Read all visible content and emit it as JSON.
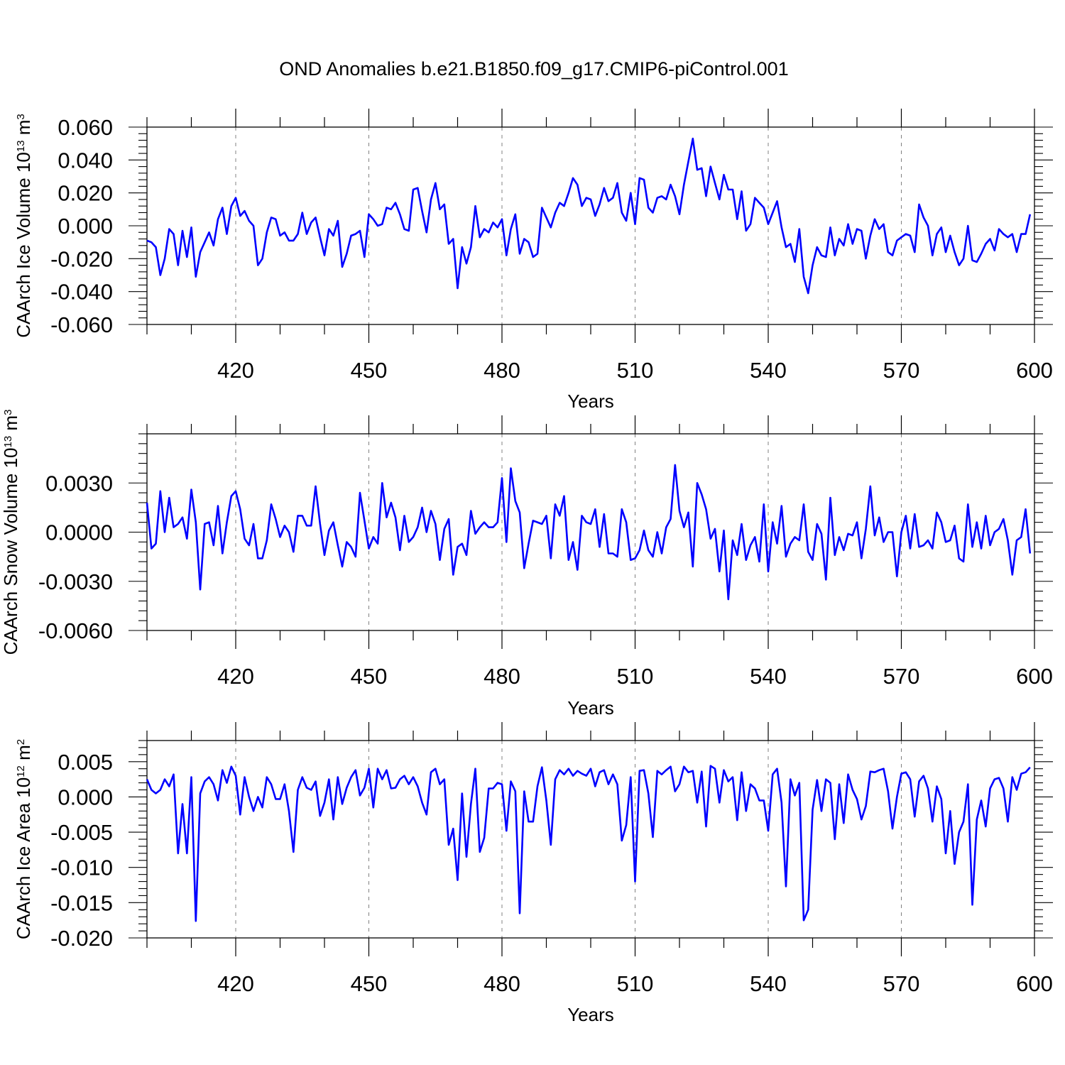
{
  "title": "OND Anomalies b.e21.B1850.f09_g17.CMIP6-piControl.001",
  "colors": {
    "series": "#0000ff",
    "axis": "#000000",
    "grid": "#808080"
  },
  "chart_data": [
    {
      "type": "line",
      "title": "OND Anomalies b.e21.B1850.f09_g17.CMIP6-piControl.001",
      "xlabel": "Years",
      "ylabel": {
        "text": "CAArch Ice Volume 10",
        "exp": "13",
        "unit": " m",
        "unit_exp": "3"
      },
      "xlim": [
        400,
        600
      ],
      "ylim": [
        -0.06,
        0.06
      ],
      "xticks": [
        420,
        450,
        480,
        510,
        540,
        570,
        600
      ],
      "xtick_labels": [
        "420",
        "450",
        "480",
        "510",
        "540",
        "570",
        "600"
      ],
      "yticks": [
        -0.06,
        -0.04,
        -0.02,
        0.0,
        0.02,
        0.04,
        0.06
      ],
      "ytick_labels": [
        "-0.060",
        "-0.040",
        "-0.020",
        "0.000",
        "0.020",
        "0.040",
        "0.060"
      ],
      "grid": "vertical-dashed",
      "x_start": 400,
      "values": [
        -0.009,
        -0.01,
        -0.013,
        -0.03,
        -0.02,
        -0.002,
        -0.005,
        -0.024,
        -0.003,
        -0.019,
        -0.001,
        -0.031,
        -0.016,
        -0.01,
        -0.004,
        -0.012,
        0.004,
        0.011,
        -0.005,
        0.012,
        0.017,
        0.006,
        0.009,
        0.003,
        0.0,
        -0.024,
        -0.02,
        -0.004,
        0.005,
        0.004,
        -0.006,
        -0.004,
        -0.009,
        -0.009,
        -0.005,
        0.008,
        -0.005,
        0.002,
        0.005,
        -0.007,
        -0.018,
        -0.002,
        -0.006,
        0.003,
        -0.025,
        -0.017,
        -0.006,
        -0.005,
        -0.003,
        -0.019,
        0.007,
        0.004,
        0.0,
        0.001,
        0.011,
        0.01,
        0.014,
        0.007,
        -0.002,
        -0.003,
        0.022,
        0.023,
        0.009,
        -0.004,
        0.016,
        0.026,
        0.01,
        0.013,
        -0.011,
        -0.008,
        -0.038,
        -0.013,
        -0.023,
        -0.013,
        0.012,
        -0.007,
        -0.002,
        -0.004,
        0.002,
        -0.001,
        0.004,
        -0.018,
        -0.002,
        0.007,
        -0.017,
        -0.008,
        -0.01,
        -0.019,
        -0.017,
        0.011,
        0.005,
        -0.001,
        0.008,
        0.014,
        0.012,
        0.02,
        0.029,
        0.025,
        0.012,
        0.017,
        0.016,
        0.006,
        0.013,
        0.023,
        0.015,
        0.017,
        0.026,
        0.008,
        0.003,
        0.02,
        0.001,
        0.029,
        0.028,
        0.011,
        0.008,
        0.017,
        0.018,
        0.016,
        0.025,
        0.018,
        0.007,
        0.025,
        0.039,
        0.053,
        0.034,
        0.035,
        0.018,
        0.036,
        0.026,
        0.016,
        0.031,
        0.022,
        0.022,
        0.004,
        0.021,
        -0.003,
        0.001,
        0.017,
        0.014,
        0.011,
        0.001,
        0.008,
        0.015,
        -0.001,
        -0.013,
        -0.011,
        -0.022,
        -0.002,
        -0.031,
        -0.041,
        -0.024,
        -0.013,
        -0.018,
        -0.019,
        -0.001,
        -0.018,
        -0.008,
        -0.012,
        0.001,
        -0.011,
        -0.002,
        -0.003,
        -0.02,
        -0.006,
        0.004,
        -0.002,
        0.001,
        -0.016,
        -0.018,
        -0.009,
        -0.007,
        -0.005,
        -0.006,
        -0.016,
        0.013,
        0.005,
        0.0,
        -0.018,
        -0.005,
        -0.001,
        -0.016,
        -0.006,
        -0.016,
        -0.024,
        -0.02,
        0.0,
        -0.021,
        -0.022,
        -0.017,
        -0.011,
        -0.008,
        -0.015,
        -0.002,
        -0.005,
        -0.007,
        -0.005,
        -0.016,
        -0.005,
        -0.005,
        0.007
      ]
    },
    {
      "type": "line",
      "xlabel": "Years",
      "ylabel": {
        "text": "CAArch Snow Volume 10",
        "exp": "13",
        "unit": " m",
        "unit_exp": "3"
      },
      "xlim": [
        400,
        600
      ],
      "ylim": [
        -0.006,
        0.006
      ],
      "xticks": [
        420,
        450,
        480,
        510,
        540,
        570,
        600
      ],
      "xtick_labels": [
        "420",
        "450",
        "480",
        "510",
        "540",
        "570",
        "600"
      ],
      "yticks": [
        -0.006,
        -0.003,
        0.0,
        0.003
      ],
      "ytick_labels": [
        "-0.0060",
        "-0.0030",
        "0.0000",
        "0.0030"
      ],
      "grid": "vertical-dashed",
      "x_start": 400,
      "values": [
        0.0018,
        -0.001,
        -0.0007,
        0.0025,
        0.0,
        0.0021,
        0.0003,
        0.0005,
        0.0009,
        -0.0004,
        0.0026,
        0.0006,
        -0.0035,
        0.0005,
        0.0006,
        -0.0008,
        0.0016,
        -0.0013,
        0.0006,
        0.0022,
        0.0025,
        0.0014,
        -0.0004,
        -0.0008,
        0.0005,
        -0.0016,
        -0.0016,
        -0.0005,
        0.0017,
        0.0008,
        -0.0003,
        0.0004,
        0.0,
        -0.0012,
        0.001,
        0.001,
        0.0004,
        0.0004,
        0.0028,
        0.0005,
        -0.0014,
        0.0001,
        0.0006,
        -0.0008,
        -0.0021,
        -0.0006,
        -0.0009,
        -0.0015,
        0.0024,
        0.0007,
        -0.001,
        -0.0003,
        -0.0007,
        0.003,
        0.0009,
        0.0018,
        0.0009,
        -0.0011,
        0.001,
        -0.0006,
        -0.0003,
        0.0003,
        0.0015,
        0.0,
        0.0013,
        0.0005,
        -0.0017,
        0.0002,
        0.0008,
        -0.0026,
        -0.0009,
        -0.0007,
        -0.0014,
        0.0013,
        -0.0001,
        0.0003,
        0.0006,
        0.0003,
        0.0003,
        0.0006,
        0.0033,
        -0.0006,
        0.0039,
        0.0019,
        0.0012,
        -0.0022,
        -0.0007,
        0.0007,
        0.0006,
        0.0005,
        0.001,
        -0.0016,
        0.0017,
        0.001,
        0.0022,
        -0.0017,
        -0.0006,
        -0.0023,
        0.001,
        0.0006,
        0.0005,
        0.0014,
        -0.0009,
        0.0011,
        -0.0013,
        -0.0013,
        -0.0015,
        0.0014,
        0.0006,
        -0.0017,
        -0.0016,
        -0.0011,
        0.0001,
        -0.0011,
        -0.0015,
        0.0,
        -0.0013,
        0.0003,
        0.0008,
        0.0041,
        0.0013,
        0.0003,
        0.0012,
        -0.0021,
        0.003,
        0.0023,
        0.0014,
        -0.0004,
        0.0002,
        -0.0024,
        0.0001,
        -0.0041,
        -0.0005,
        -0.0014,
        0.0005,
        -0.0017,
        -0.0008,
        -0.0003,
        -0.0018,
        0.0017,
        -0.0024,
        0.0006,
        -0.0007,
        0.0016,
        -0.0015,
        -0.0007,
        -0.0003,
        -0.0005,
        0.0017,
        -0.0012,
        -0.0017,
        0.0005,
        -0.0001,
        -0.0029,
        0.0021,
        -0.0014,
        -0.0003,
        -0.0011,
        -0.0001,
        -0.0002,
        0.0006,
        -0.0016,
        0.0002,
        0.0028,
        -0.0002,
        0.0009,
        -0.0006,
        0.0,
        0.0,
        -0.0027,
        0.0,
        0.001,
        -0.001,
        0.0011,
        -0.0009,
        -0.0008,
        -0.0005,
        -0.001,
        0.0012,
        0.0006,
        -0.0006,
        -0.0005,
        0.0004,
        -0.0016,
        -0.0018,
        0.0017,
        -0.0009,
        0.0006,
        -0.001,
        0.001,
        -0.0008,
        0.0,
        0.0002,
        0.0008,
        -0.0005,
        -0.0026,
        -0.0005,
        -0.0003,
        0.0014,
        -0.0013
      ]
    },
    {
      "type": "line",
      "xlabel": "Years",
      "ylabel": {
        "text": "CAArch Ice Area 10",
        "exp": "12",
        "unit": " m",
        "unit_exp": "2"
      },
      "xlim": [
        400,
        600
      ],
      "ylim": [
        -0.02,
        0.008
      ],
      "xticks": [
        420,
        450,
        480,
        510,
        540,
        570,
        600
      ],
      "xtick_labels": [
        "420",
        "450",
        "480",
        "510",
        "540",
        "570",
        "600"
      ],
      "yticks": [
        -0.02,
        -0.015,
        -0.01,
        -0.005,
        0.0,
        0.005
      ],
      "ytick_labels": [
        "-0.020",
        "-0.015",
        "-0.010",
        "-0.005",
        "0.000",
        "0.005"
      ],
      "grid": "vertical-dashed",
      "x_start": 400,
      "values": [
        0.0025,
        0.001,
        0.0005,
        0.001,
        0.0025,
        0.0015,
        0.0032,
        -0.008,
        -0.001,
        -0.008,
        0.0028,
        -0.0176,
        0.0005,
        0.0022,
        0.0028,
        0.0018,
        -0.0005,
        0.0038,
        0.002,
        0.0043,
        0.003,
        -0.0025,
        0.0028,
        0.0,
        -0.002,
        0.0,
        -0.0015,
        0.0028,
        0.0018,
        -0.0003,
        -0.0003,
        0.0018,
        -0.002,
        -0.0078,
        0.001,
        0.0028,
        0.0013,
        0.001,
        0.0022,
        -0.0027,
        -0.0008,
        0.0025,
        -0.0032,
        0.0028,
        -0.001,
        0.0013,
        0.0028,
        0.0038,
        0.0002,
        0.0013,
        0.004,
        -0.0015,
        0.004,
        0.0025,
        0.0038,
        0.0012,
        0.0013,
        0.0025,
        0.003,
        0.0018,
        0.0028,
        0.0015,
        -0.0008,
        -0.0025,
        0.0035,
        0.004,
        0.0018,
        0.0025,
        -0.0068,
        -0.0045,
        -0.0118,
        0.0005,
        -0.0085,
        -0.001,
        0.004,
        -0.0078,
        -0.0058,
        0.0012,
        0.0012,
        0.002,
        0.0018,
        -0.0048,
        0.0022,
        0.0008,
        -0.0165,
        0.0008,
        -0.0035,
        -0.0035,
        0.0015,
        0.0042,
        -0.0005,
        -0.0068,
        0.0025,
        0.0038,
        0.0032,
        0.004,
        0.003,
        0.0037,
        0.0033,
        0.003,
        0.004,
        0.0015,
        0.0035,
        0.0038,
        0.0018,
        0.0032,
        0.0018,
        -0.0062,
        -0.004,
        0.0028,
        -0.012,
        0.0037,
        0.0038,
        0.0005,
        -0.0057,
        0.0037,
        0.0032,
        0.0038,
        0.0043,
        0.0008,
        0.0018,
        0.0043,
        0.0035,
        0.0037,
        -0.0008,
        0.0036,
        -0.0042,
        0.0044,
        0.004,
        -0.0008,
        0.0038,
        0.0022,
        0.0028,
        -0.0033,
        0.0035,
        -0.002,
        0.0018,
        0.0012,
        -0.0005,
        -0.0005,
        -0.0048,
        0.0032,
        0.004,
        -0.0008,
        -0.0127,
        0.0025,
        0.0002,
        0.002,
        -0.0175,
        -0.016,
        -0.0018,
        0.0024,
        -0.002,
        0.0025,
        0.002,
        -0.006,
        0.0018,
        -0.0037,
        0.0032,
        0.001,
        -0.0003,
        -0.0032,
        -0.0013,
        0.0036,
        0.0035,
        0.0038,
        0.004,
        0.0008,
        -0.0045,
        0.0,
        0.0033,
        0.0035,
        0.0025,
        -0.0028,
        0.0022,
        0.003,
        0.0012,
        -0.0035,
        0.0015,
        -0.0003,
        -0.008,
        -0.002,
        -0.0095,
        -0.005,
        -0.0035,
        0.0018,
        -0.0153,
        -0.0032,
        -0.0005,
        -0.0042,
        0.0012,
        0.0025,
        0.0027,
        0.0012,
        -0.0035,
        0.0028,
        0.001,
        0.0033,
        0.0035,
        0.0042
      ]
    }
  ]
}
